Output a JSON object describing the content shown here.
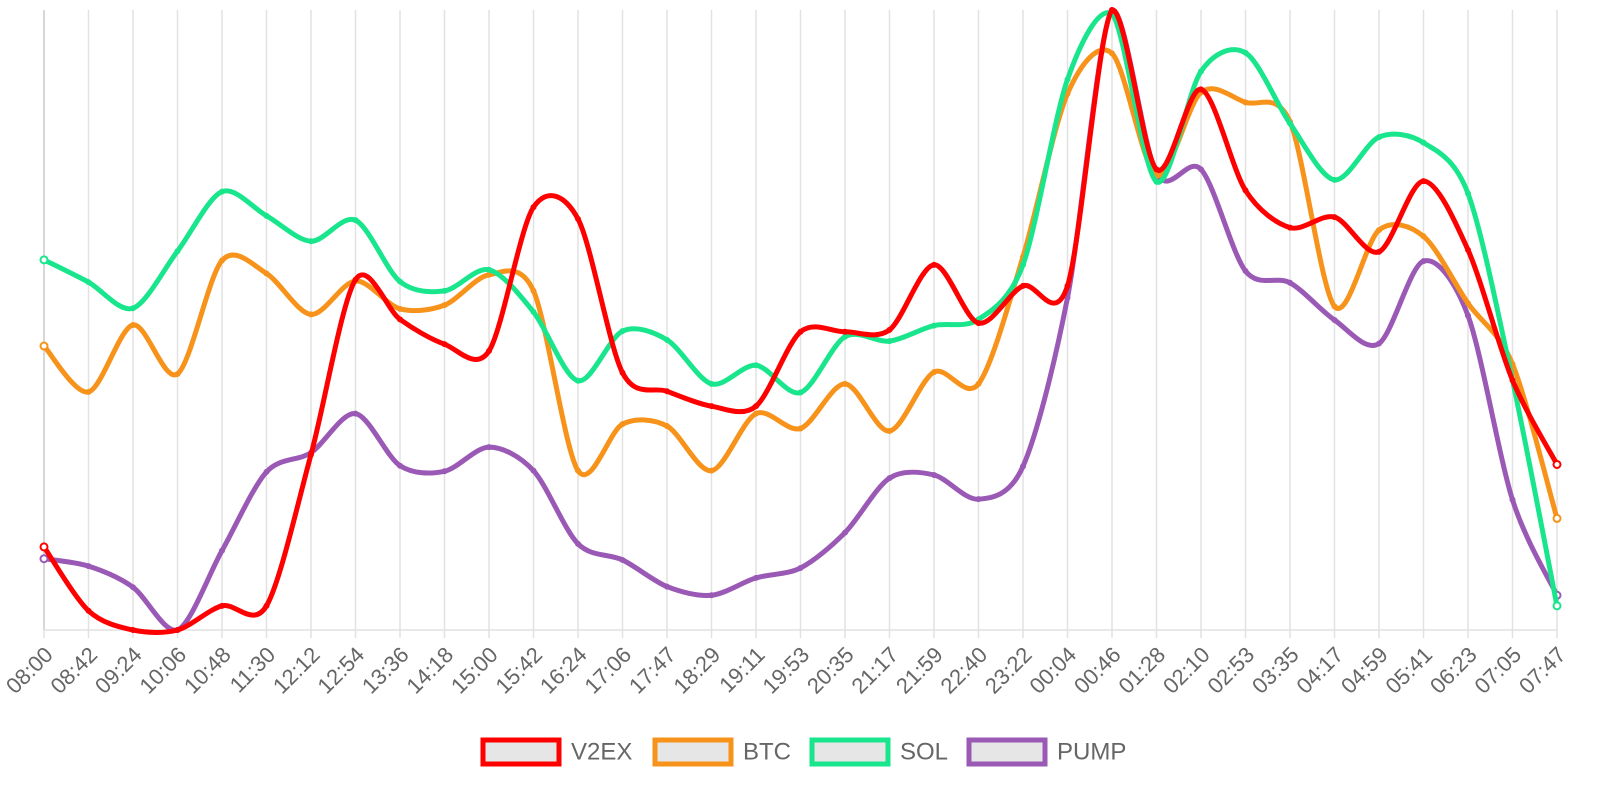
{
  "chart_data": {
    "type": "line",
    "title": "",
    "xlabel": "",
    "ylabel": "",
    "categories": [
      "08:00",
      "08:42",
      "09:24",
      "10:06",
      "10:48",
      "11:30",
      "12:12",
      "12:54",
      "13:36",
      "14:18",
      "15:00",
      "15:42",
      "16:24",
      "17:06",
      "17:47",
      "18:29",
      "19:11",
      "19:53",
      "20:35",
      "21:17",
      "21:59",
      "22:40",
      "23:22",
      "00:04",
      "00:46",
      "01:28",
      "02:10",
      "02:53",
      "03:35",
      "04:17",
      "04:59",
      "05:41",
      "06:23",
      "07:05",
      "07:47"
    ],
    "series_scale": "normalized 0-100 (no y-axis shown)",
    "ylim": [
      0,
      100
    ],
    "grid": true,
    "legend_position": "bottom",
    "series": [
      {
        "name": "V2EX",
        "color": "#ff0000",
        "values": [
          13.4,
          3.1,
          0,
          0,
          3.9,
          3.9,
          28.3,
          56.5,
          50.1,
          46.1,
          45,
          68.2,
          66.3,
          41.5,
          38.5,
          36.1,
          36.1,
          48.1,
          48.1,
          48.4,
          58.9,
          49.5,
          55.5,
          55.5,
          100,
          74.3,
          87.2,
          70.9,
          64.9,
          66.6,
          61,
          72.4,
          61.3,
          40.3,
          26.7
        ]
      },
      {
        "name": "BTC",
        "color": "#f7931a",
        "values": [
          45.8,
          38.4,
          49.2,
          41.3,
          59.6,
          57.5,
          50.9,
          56.3,
          51.8,
          52.4,
          57.3,
          54.7,
          25.7,
          33.2,
          32.9,
          25.7,
          34.9,
          32.5,
          39.7,
          32.1,
          41.6,
          39.7,
          60.2,
          86.5,
          93,
          73.3,
          86.7,
          85.1,
          82,
          52.2,
          64.5,
          63.5,
          52.7,
          42.9,
          18
        ]
      },
      {
        "name": "SOL",
        "color": "#19e68c",
        "values": [
          59.7,
          56.1,
          51.9,
          61.1,
          70.7,
          66.8,
          62.7,
          66.1,
          56.2,
          54.7,
          58.1,
          51.3,
          40.2,
          48.2,
          46.8,
          39.7,
          42.7,
          38.3,
          47.3,
          46.6,
          49.1,
          50.1,
          58.9,
          88.8,
          99.4,
          72.3,
          90.1,
          93.1,
          81.7,
          72.6,
          79.5,
          78.6,
          70.4,
          40.3,
          3.9
        ]
      },
      {
        "name": "PUMP",
        "color": "#9b59b6",
        "values": [
          11.5,
          10.3,
          6.9,
          0,
          12.8,
          25.5,
          28.6,
          34.9,
          26.5,
          25.6,
          29.5,
          25.7,
          13.9,
          11.3,
          7,
          5.6,
          8.4,
          10,
          15.7,
          24.5,
          25,
          21.1,
          26.4,
          53.6,
          100,
          73.6,
          74.3,
          57.9,
          56,
          50,
          46.2,
          59.5,
          50.7,
          21,
          5.6
        ]
      }
    ]
  }
}
